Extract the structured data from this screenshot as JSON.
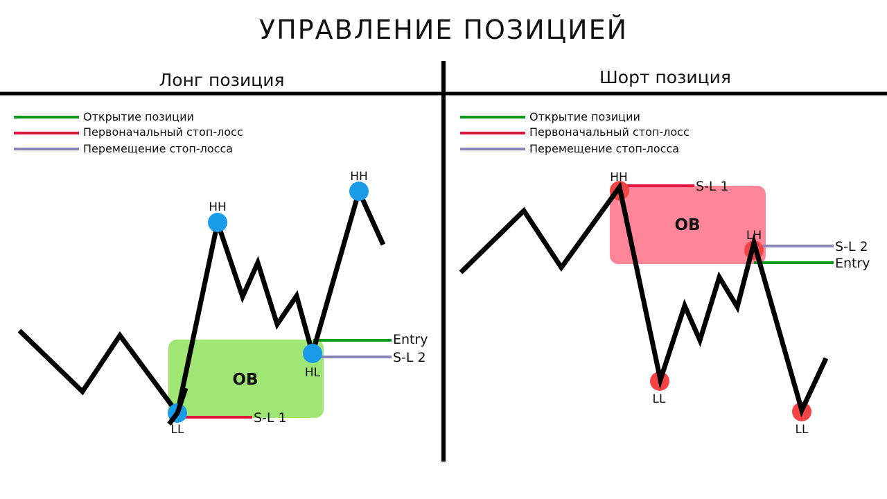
{
  "title": "УПРАВЛЕНИЕ ПОЗИЦИЕЙ",
  "colors": {
    "entry": "#0a9a1e",
    "initial_stop": "#e0143c",
    "moved_stop": "#8a86bb",
    "price_line": "#000000",
    "long_ob": "#a0e675",
    "short_ob": "#ff8598",
    "long_point": "#1a9be8",
    "short_point": "#f24444"
  },
  "legend": {
    "entry": "Открытие позиции",
    "initial_stop": "Первоначальный стоп-лосс",
    "moved_stop": "Перемещение стоп-лосса"
  },
  "long": {
    "heading": "Лонг позиция",
    "ob": "OB",
    "points": {
      "hh1": "HH",
      "hh2": "HH",
      "ll": "LL",
      "hl": "HL"
    },
    "levels": {
      "entry": "Entry",
      "sl1": "S-L 1",
      "sl2": "S-L 2"
    }
  },
  "short": {
    "heading": "Шорт позиция",
    "ob": "OB",
    "points": {
      "hh": "HH",
      "lh": "LH",
      "ll1": "LL",
      "ll2": "LL"
    },
    "levels": {
      "sl1": "S-L 1",
      "sl2": "S-L 2",
      "entry": "Entry"
    }
  }
}
